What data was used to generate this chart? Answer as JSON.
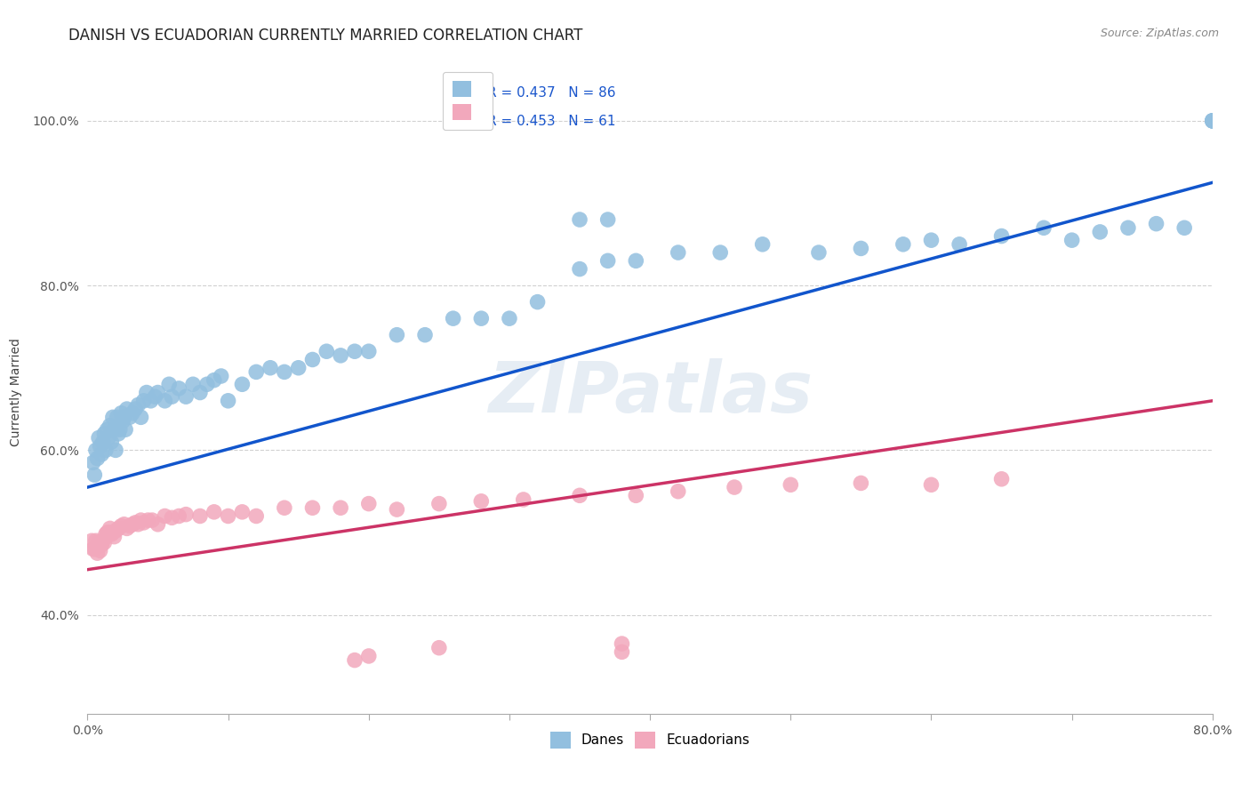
{
  "title": "DANISH VS ECUADORIAN CURRENTLY MARRIED CORRELATION CHART",
  "source": "Source: ZipAtlas.com",
  "ylabel_label": "Currently Married",
  "x_min": 0.0,
  "x_max": 0.8,
  "y_min": 0.28,
  "y_max": 1.06,
  "y_ticks": [
    0.4,
    0.6,
    0.8,
    1.0
  ],
  "y_tick_labels": [
    "40.0%",
    "60.0%",
    "80.0%",
    "100.0%"
  ],
  "x_tick_labels_left": "0.0%",
  "x_tick_labels_right": "80.0%",
  "danes_R": "0.437",
  "danes_N": "86",
  "ecuadorians_R": "0.453",
  "ecuadorians_N": "61",
  "danes_color": "#92bfdf",
  "ecuadorians_color": "#f2a8bc",
  "danes_line_color": "#1155cc",
  "ecuadorians_line_color": "#cc3366",
  "background_color": "#ffffff",
  "grid_color": "#cccccc",
  "watermark": "ZIPatlas",
  "danes_line_y0": 0.555,
  "danes_line_y1": 0.925,
  "ecuadorians_line_y0": 0.455,
  "ecuadorians_line_y1": 0.66,
  "danes_x": [
    0.004,
    0.005,
    0.006,
    0.007,
    0.008,
    0.009,
    0.01,
    0.011,
    0.012,
    0.013,
    0.014,
    0.015,
    0.016,
    0.017,
    0.018,
    0.019,
    0.02,
    0.021,
    0.022,
    0.023,
    0.024,
    0.025,
    0.026,
    0.027,
    0.028,
    0.03,
    0.032,
    0.034,
    0.036,
    0.038,
    0.04,
    0.042,
    0.045,
    0.048,
    0.05,
    0.055,
    0.058,
    0.06,
    0.065,
    0.07,
    0.075,
    0.08,
    0.085,
    0.09,
    0.095,
    0.1,
    0.11,
    0.12,
    0.13,
    0.14,
    0.15,
    0.16,
    0.17,
    0.18,
    0.19,
    0.2,
    0.22,
    0.24,
    0.26,
    0.28,
    0.3,
    0.32,
    0.35,
    0.37,
    0.39,
    0.42,
    0.45,
    0.48,
    0.52,
    0.55,
    0.58,
    0.6,
    0.62,
    0.65,
    0.68,
    0.7,
    0.72,
    0.74,
    0.76,
    0.78,
    0.8,
    0.8,
    0.8,
    0.8,
    0.35,
    0.37
  ],
  "danes_y": [
    0.585,
    0.57,
    0.6,
    0.59,
    0.615,
    0.605,
    0.595,
    0.61,
    0.62,
    0.6,
    0.625,
    0.615,
    0.63,
    0.61,
    0.64,
    0.625,
    0.6,
    0.64,
    0.62,
    0.625,
    0.645,
    0.635,
    0.64,
    0.625,
    0.65,
    0.64,
    0.645,
    0.65,
    0.655,
    0.64,
    0.66,
    0.67,
    0.66,
    0.665,
    0.67,
    0.66,
    0.68,
    0.665,
    0.675,
    0.665,
    0.68,
    0.67,
    0.68,
    0.685,
    0.69,
    0.66,
    0.68,
    0.695,
    0.7,
    0.695,
    0.7,
    0.71,
    0.72,
    0.715,
    0.72,
    0.72,
    0.74,
    0.74,
    0.76,
    0.76,
    0.76,
    0.78,
    0.82,
    0.83,
    0.83,
    0.84,
    0.84,
    0.85,
    0.84,
    0.845,
    0.85,
    0.855,
    0.85,
    0.86,
    0.87,
    0.855,
    0.865,
    0.87,
    0.875,
    0.87,
    1.0,
    1.0,
    1.0,
    1.0,
    0.88,
    0.88
  ],
  "ecuadorians_x": [
    0.003,
    0.004,
    0.005,
    0.006,
    0.007,
    0.008,
    0.009,
    0.01,
    0.011,
    0.012,
    0.013,
    0.014,
    0.015,
    0.016,
    0.017,
    0.018,
    0.019,
    0.02,
    0.022,
    0.024,
    0.026,
    0.028,
    0.03,
    0.032,
    0.034,
    0.036,
    0.038,
    0.04,
    0.043,
    0.046,
    0.05,
    0.055,
    0.06,
    0.065,
    0.07,
    0.08,
    0.09,
    0.1,
    0.11,
    0.12,
    0.14,
    0.16,
    0.18,
    0.2,
    0.22,
    0.25,
    0.28,
    0.31,
    0.35,
    0.39,
    0.42,
    0.46,
    0.5,
    0.55,
    0.6,
    0.65,
    0.19,
    0.2,
    0.25,
    0.38,
    0.38
  ],
  "ecuadorians_y": [
    0.49,
    0.48,
    0.48,
    0.49,
    0.475,
    0.488,
    0.478,
    0.485,
    0.49,
    0.488,
    0.498,
    0.5,
    0.5,
    0.505,
    0.498,
    0.5,
    0.495,
    0.502,
    0.505,
    0.508,
    0.51,
    0.505,
    0.508,
    0.51,
    0.512,
    0.51,
    0.515,
    0.512,
    0.515,
    0.515,
    0.51,
    0.52,
    0.518,
    0.52,
    0.522,
    0.52,
    0.525,
    0.52,
    0.525,
    0.52,
    0.53,
    0.53,
    0.53,
    0.535,
    0.528,
    0.535,
    0.538,
    0.54,
    0.545,
    0.545,
    0.55,
    0.555,
    0.558,
    0.56,
    0.558,
    0.565,
    0.345,
    0.35,
    0.36,
    0.355,
    0.365
  ],
  "title_fontsize": 12,
  "axis_label_fontsize": 10,
  "tick_fontsize": 10,
  "legend_fontsize": 11,
  "source_fontsize": 9
}
